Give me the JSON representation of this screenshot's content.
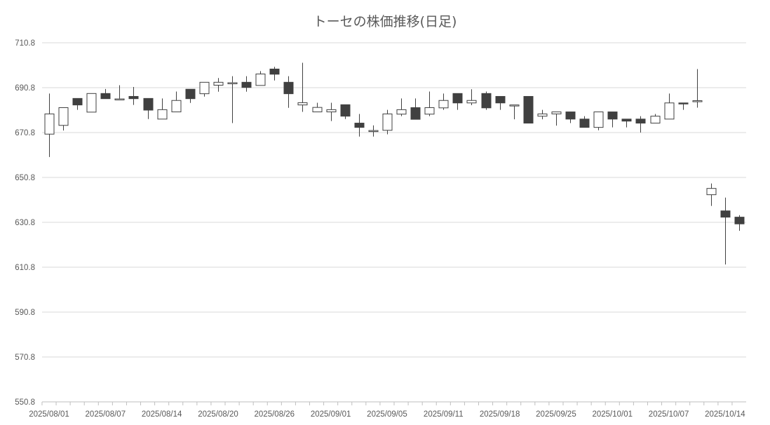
{
  "chart_data": {
    "type": "candlestick",
    "title": "トーセの株価推移(日足)",
    "xlabel": "",
    "ylabel": "",
    "ylim": [
      550.8,
      710.8
    ],
    "yticks": [
      "550.8",
      "570.8",
      "590.8",
      "610.8",
      "630.8",
      "650.8",
      "670.8",
      "690.8",
      "710.8"
    ],
    "xticks": [
      {
        "index": 0,
        "label": "2025/08/01"
      },
      {
        "index": 4,
        "label": "2025/08/07"
      },
      {
        "index": 8,
        "label": "2025/08/14"
      },
      {
        "index": 12,
        "label": "2025/08/20"
      },
      {
        "index": 16,
        "label": "2025/08/26"
      },
      {
        "index": 20,
        "label": "2025/09/01"
      },
      {
        "index": 24,
        "label": "2025/09/05"
      },
      {
        "index": 28,
        "label": "2025/09/11"
      },
      {
        "index": 32,
        "label": "2025/09/18"
      },
      {
        "index": 36,
        "label": "2025/09/25"
      },
      {
        "index": 40,
        "label": "2025/10/01"
      },
      {
        "index": 44,
        "label": "2025/10/07"
      },
      {
        "index": 48,
        "label": "2025/10/14"
      }
    ],
    "grid": true,
    "colors": {
      "up": "#ffffff",
      "down": "#404040",
      "outline": "#404040",
      "grid": "#d9d9d9"
    },
    "ohlc": [
      [
        670.1,
        688.2,
        659.9,
        679.1
      ],
      [
        674.0,
        681.9,
        671.7,
        681.9
      ],
      [
        686.0,
        686.0,
        680.9,
        683.1
      ],
      [
        679.9,
        688.2,
        679.9,
        688.2
      ],
      [
        688.2,
        690.2,
        685.9,
        685.9
      ],
      [
        685.8,
        691.9,
        685.8,
        685.8
      ],
      [
        686.9,
        691.1,
        683.1,
        685.9
      ],
      [
        686.0,
        686.0,
        676.8,
        680.8
      ],
      [
        676.8,
        686.0,
        676.8,
        681.0
      ],
      [
        680.0,
        689.1,
        680.0,
        685.1
      ],
      [
        690.1,
        690.1,
        684.0,
        685.9
      ],
      [
        688.1,
        693.2,
        686.8,
        693.2
      ],
      [
        691.9,
        695.1,
        689.0,
        693.2
      ],
      [
        693.0,
        695.9,
        675.0,
        693.0
      ],
      [
        693.2,
        695.9,
        689.0,
        690.9
      ],
      [
        691.8,
        698.2,
        691.8,
        696.9
      ],
      [
        699.1,
        700.1,
        694.0,
        696.8
      ],
      [
        693.2,
        695.9,
        681.8,
        688.1
      ],
      [
        683.1,
        701.9,
        680.0,
        684.1
      ],
      [
        680.0,
        684.1,
        680.0,
        682.0
      ],
      [
        680.0,
        684.1,
        675.9,
        681.0
      ],
      [
        683.2,
        683.2,
        676.8,
        678.1
      ],
      [
        675.0,
        679.1,
        669.0,
        673.1
      ],
      [
        671.7,
        674.0,
        669.0,
        671.7
      ],
      [
        671.8,
        680.9,
        670.0,
        679.1
      ],
      [
        679.0,
        686.0,
        678.1,
        681.0
      ],
      [
        681.9,
        686.0,
        676.7,
        676.7
      ],
      [
        679.0,
        689.1,
        678.1,
        681.9
      ],
      [
        681.8,
        688.2,
        680.9,
        685.1
      ],
      [
        688.2,
        688.2,
        680.9,
        684.0
      ],
      [
        684.0,
        690.1,
        683.0,
        685.1
      ],
      [
        688.2,
        689.1,
        680.9,
        681.8
      ],
      [
        686.9,
        686.9,
        680.9,
        684.0
      ],
      [
        683.1,
        683.1,
        676.7,
        683.1
      ],
      [
        686.9,
        686.9,
        675.0,
        675.0
      ],
      [
        678.1,
        680.9,
        676.7,
        679.1
      ],
      [
        679.1,
        680.0,
        673.9,
        680.0
      ],
      [
        680.0,
        680.0,
        675.0,
        676.8
      ],
      [
        676.8,
        678.1,
        673.1,
        673.1
      ],
      [
        673.1,
        680.0,
        671.8,
        680.0
      ],
      [
        680.0,
        680.0,
        673.1,
        676.8
      ],
      [
        676.8,
        676.8,
        673.1,
        675.9
      ],
      [
        676.8,
        678.1,
        670.8,
        675.0
      ],
      [
        675.0,
        679.1,
        675.0,
        678.1
      ],
      [
        676.8,
        688.2,
        676.8,
        684.0
      ],
      [
        684.0,
        684.0,
        680.9,
        683.8
      ],
      [
        684.8,
        699.1,
        681.9,
        685.0
      ],
      [
        643.1,
        648.1,
        638.1,
        645.9
      ],
      [
        635.9,
        641.8,
        612.0,
        633.1
      ],
      [
        633.1,
        634.0,
        627.0,
        630.1
      ]
    ]
  }
}
